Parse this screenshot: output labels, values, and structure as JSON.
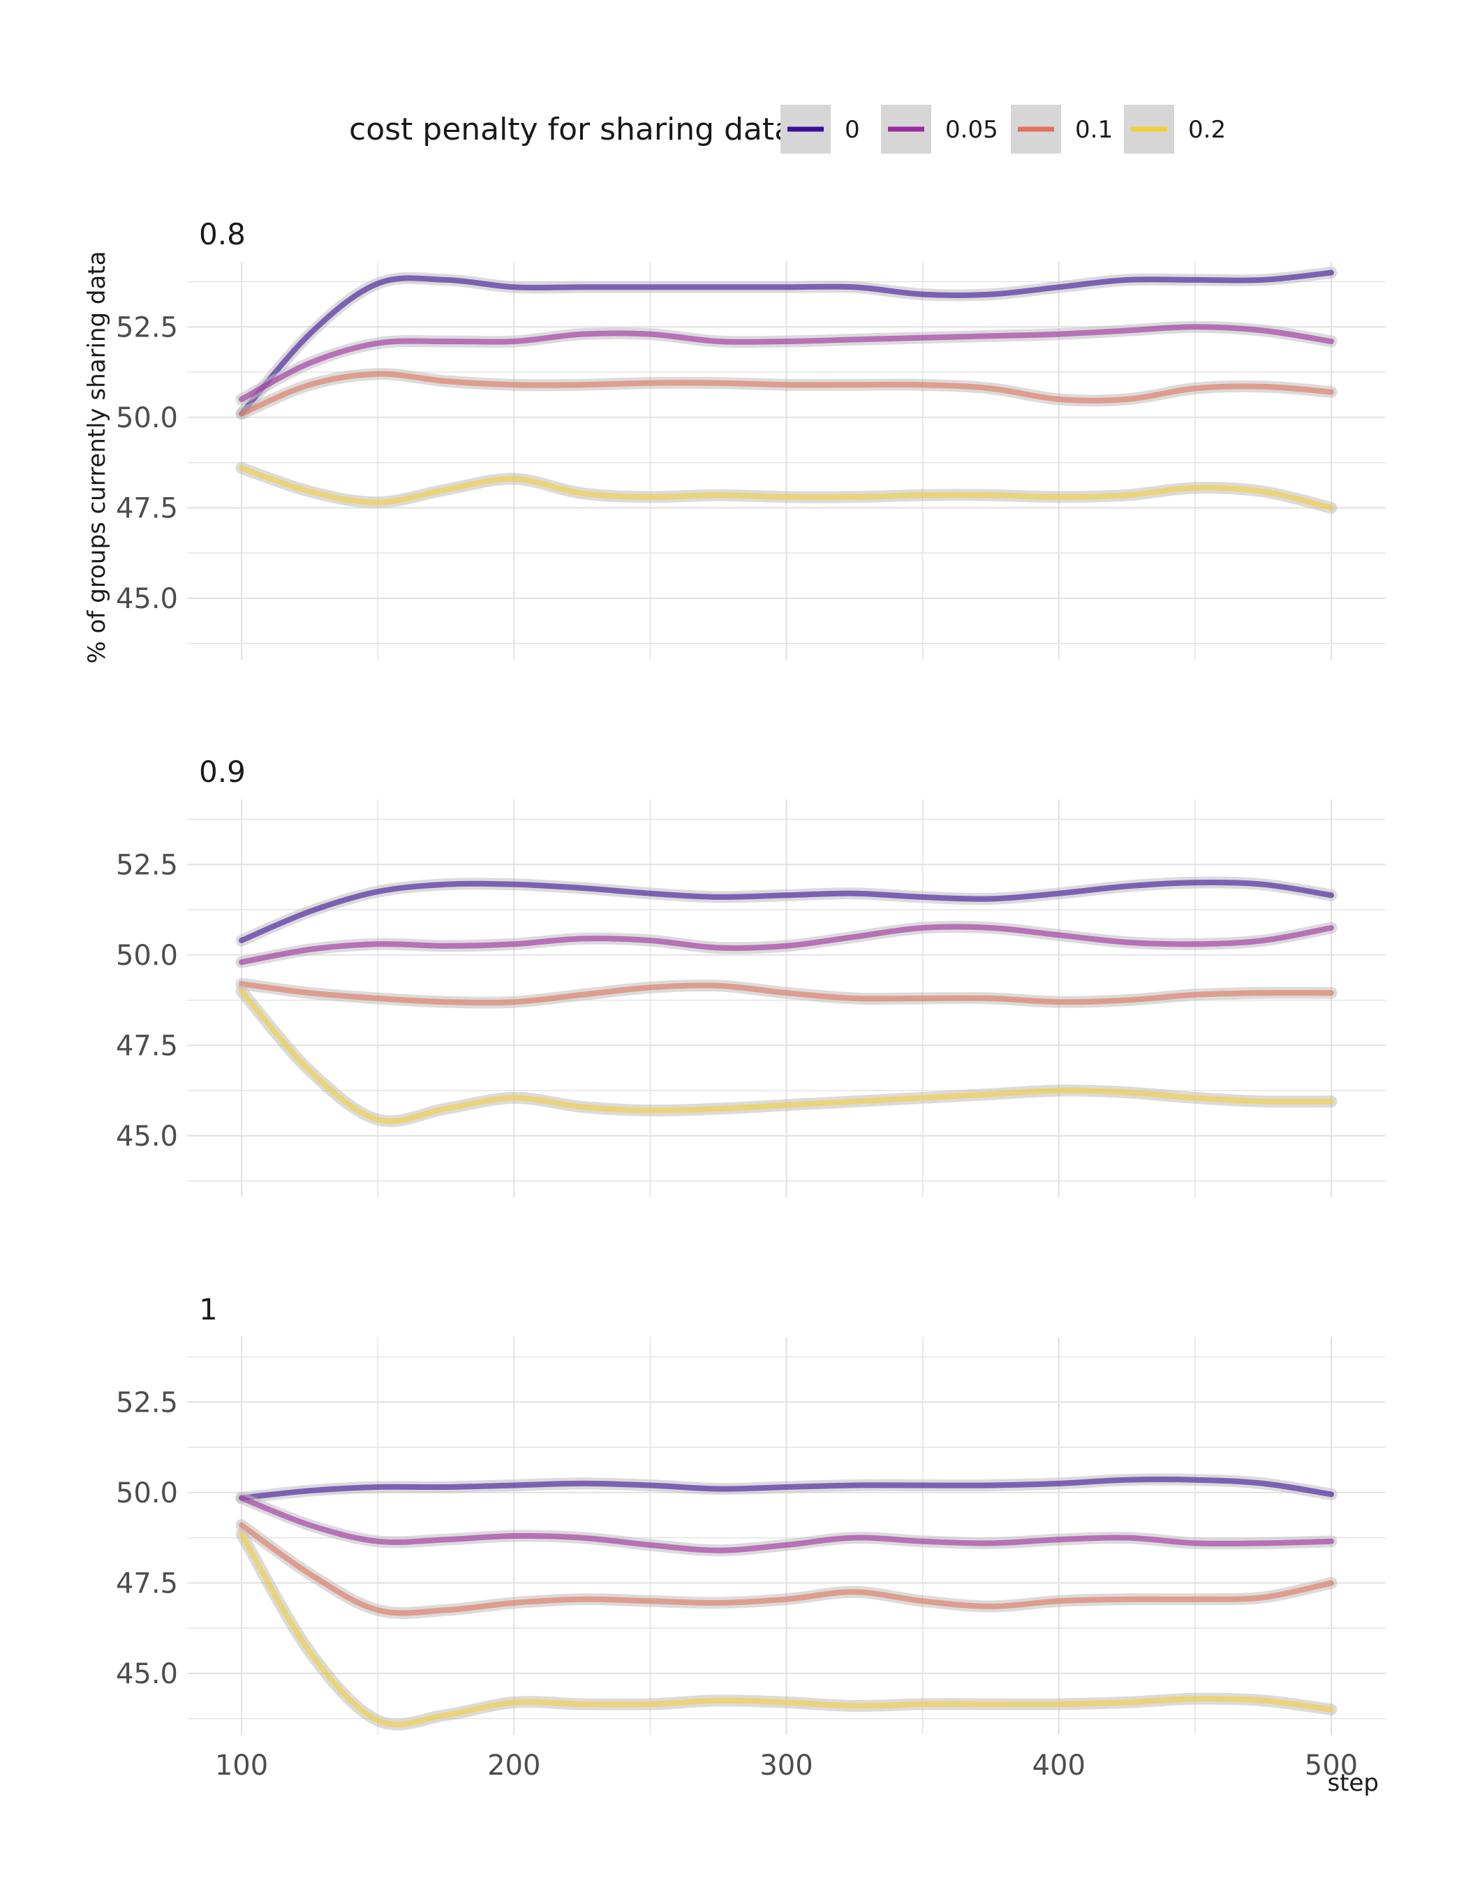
{
  "chart_data": {
    "type": "line",
    "xlabel": "step",
    "ylabel": "% of groups currently sharing data",
    "xlim": [
      80,
      520
    ],
    "ylim": [
      43.3,
      54.3
    ],
    "x_ticks": [
      100,
      200,
      300,
      400,
      500
    ],
    "x_tick_labels": [
      "100",
      "200",
      "300",
      "400",
      "500"
    ],
    "y_ticks": [
      45,
      47.5,
      50,
      52.5
    ],
    "y_tick_labels": [
      "45.0",
      "47.5",
      "50.0",
      "52.5"
    ],
    "grid": true,
    "legend": {
      "title": "cost penalty for sharing data",
      "position": "top",
      "entries": [
        "0",
        "0.05",
        "0.1",
        "0.2"
      ]
    },
    "colors": {
      "0": "#3b0f97",
      "0.05": "#9c2a9e",
      "0.1": "#e0735a",
      "0.2": "#f2cf3a",
      "ribbon": "#bdbdbd",
      "panel_grid": "#e3e3e3"
    },
    "x": [
      100,
      125,
      150,
      175,
      200,
      225,
      250,
      275,
      300,
      325,
      350,
      375,
      400,
      425,
      450,
      475,
      500
    ],
    "facets": [
      {
        "label": "0.8",
        "series": [
          {
            "name": "0",
            "values": [
              50.1,
              52.3,
              53.7,
              53.8,
              53.6,
              53.6,
              53.6,
              53.6,
              53.6,
              53.6,
              53.4,
              53.4,
              53.6,
              53.8,
              53.8,
              53.8,
              54.0
            ]
          },
          {
            "name": "0.05",
            "values": [
              50.5,
              51.5,
              52.05,
              52.1,
              52.1,
              52.3,
              52.3,
              52.1,
              52.1,
              52.15,
              52.2,
              52.25,
              52.3,
              52.4,
              52.5,
              52.4,
              52.1
            ]
          },
          {
            "name": "0.1",
            "values": [
              50.1,
              50.9,
              51.2,
              51.0,
              50.9,
              50.9,
              50.95,
              50.95,
              50.9,
              50.9,
              50.9,
              50.8,
              50.5,
              50.5,
              50.8,
              50.85,
              50.7
            ]
          },
          {
            "name": "0.2",
            "values": [
              48.6,
              47.95,
              47.65,
              48.0,
              48.3,
              47.9,
              47.8,
              47.85,
              47.8,
              47.8,
              47.85,
              47.85,
              47.8,
              47.85,
              48.05,
              47.95,
              47.5
            ]
          }
        ]
      },
      {
        "label": "0.9",
        "series": [
          {
            "name": "0",
            "values": [
              50.4,
              51.2,
              51.75,
              51.95,
              51.95,
              51.85,
              51.7,
              51.6,
              51.65,
              51.7,
              51.6,
              51.55,
              51.7,
              51.9,
              52.0,
              51.95,
              51.65
            ]
          },
          {
            "name": "0.05",
            "values": [
              49.8,
              50.15,
              50.3,
              50.25,
              50.3,
              50.45,
              50.4,
              50.2,
              50.25,
              50.5,
              50.75,
              50.75,
              50.55,
              50.35,
              50.3,
              50.4,
              50.75
            ]
          },
          {
            "name": "0.1",
            "values": [
              49.2,
              48.95,
              48.8,
              48.7,
              48.7,
              48.9,
              49.1,
              49.15,
              48.95,
              48.8,
              48.8,
              48.8,
              48.7,
              48.75,
              48.9,
              48.95,
              48.95
            ]
          },
          {
            "name": "0.2",
            "values": [
              49.0,
              46.8,
              45.45,
              45.75,
              46.05,
              45.8,
              45.7,
              45.75,
              45.85,
              45.95,
              46.05,
              46.15,
              46.25,
              46.2,
              46.05,
              45.95,
              45.95
            ]
          }
        ]
      },
      {
        "label": "1",
        "series": [
          {
            "name": "0",
            "values": [
              49.85,
              50.05,
              50.15,
              50.15,
              50.2,
              50.25,
              50.2,
              50.1,
              50.15,
              50.2,
              50.2,
              50.2,
              50.25,
              50.35,
              50.35,
              50.25,
              49.95
            ]
          },
          {
            "name": "0.05",
            "values": [
              49.85,
              49.1,
              48.65,
              48.7,
              48.8,
              48.75,
              48.55,
              48.4,
              48.55,
              48.75,
              48.65,
              48.6,
              48.7,
              48.75,
              48.6,
              48.6,
              48.65
            ]
          },
          {
            "name": "0.1",
            "values": [
              49.1,
              47.75,
              46.75,
              46.75,
              46.95,
              47.05,
              47.0,
              46.95,
              47.05,
              47.25,
              47.0,
              46.85,
              47.0,
              47.05,
              47.05,
              47.1,
              47.5
            ]
          },
          {
            "name": "0.2",
            "values": [
              48.85,
              45.6,
              43.7,
              43.85,
              44.2,
              44.15,
              44.15,
              44.25,
              44.2,
              44.1,
              44.15,
              44.15,
              44.15,
              44.2,
              44.3,
              44.25,
              44.0
            ]
          }
        ]
      }
    ]
  }
}
